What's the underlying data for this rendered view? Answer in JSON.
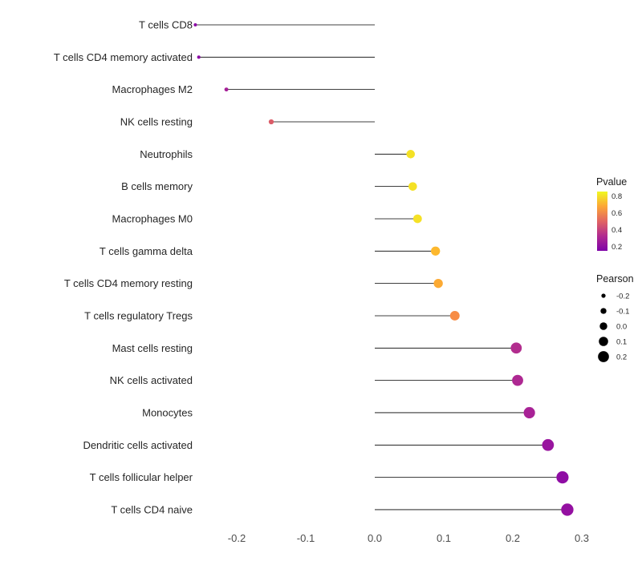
{
  "chart_data": {
    "type": "lollipop",
    "orientation": "horizontal",
    "title": "",
    "xlabel": "",
    "ylabel": "",
    "baseline": 0.0,
    "xlim": [
      -0.27,
      0.33
    ],
    "x_ticks": [
      -0.2,
      -0.1,
      0.0,
      0.1,
      0.2,
      0.3
    ],
    "x_tick_labels": [
      "-0.2",
      "-0.1",
      "0.0",
      "0.1",
      "0.2",
      "0.3"
    ],
    "grid": "off",
    "points": [
      {
        "label": "T cells CD8",
        "pearson": -0.26,
        "pvalue": 0.26,
        "color": "#8b0aa5"
      },
      {
        "label": "T cells CD4 memory activated",
        "pearson": -0.255,
        "pvalue": 0.26,
        "color": "#8b0aa5"
      },
      {
        "label": "Macrophages M2",
        "pearson": -0.215,
        "pvalue": 0.33,
        "color": "#a62098"
      },
      {
        "label": "NK cells resting",
        "pearson": -0.15,
        "pvalue": 0.48,
        "color": "#db5c68"
      },
      {
        "label": "Neutrophils",
        "pearson": 0.052,
        "pvalue": 0.8,
        "color": "#f4e125"
      },
      {
        "label": "B cells memory",
        "pearson": 0.055,
        "pvalue": 0.8,
        "color": "#f4e125"
      },
      {
        "label": "Macrophages M0",
        "pearson": 0.062,
        "pvalue": 0.78,
        "color": "#f5e126"
      },
      {
        "label": "T cells gamma delta",
        "pearson": 0.088,
        "pvalue": 0.68,
        "color": "#fdb82e"
      },
      {
        "label": "T cells CD4 memory resting",
        "pearson": 0.092,
        "pvalue": 0.65,
        "color": "#fcaa33"
      },
      {
        "label": "T cells regulatory  Tregs",
        "pearson": 0.116,
        "pvalue": 0.57,
        "color": "#f78c45"
      },
      {
        "label": "Mast cells resting",
        "pearson": 0.205,
        "pvalue": 0.34,
        "color": "#b22d8e"
      },
      {
        "label": "NK cells activated",
        "pearson": 0.207,
        "pvalue": 0.33,
        "color": "#ae2892"
      },
      {
        "label": "Monocytes",
        "pearson": 0.224,
        "pvalue": 0.31,
        "color": "#a82296"
      },
      {
        "label": "Dendritic cells activated",
        "pearson": 0.251,
        "pvalue": 0.27,
        "color": "#99159f"
      },
      {
        "label": "T cells follicular helper",
        "pearson": 0.272,
        "pvalue": 0.25,
        "color": "#8f0da4"
      },
      {
        "label": "T cells CD4 naive",
        "pearson": 0.279,
        "pvalue": 0.26,
        "color": "#9410a1"
      }
    ],
    "legend": {
      "position": "right",
      "color": {
        "title": "Pvalue",
        "domain": [
          0.15,
          0.85
        ],
        "tick_values": [
          0.8,
          0.6,
          0.4,
          0.2
        ],
        "ticks": [
          "0.8",
          "0.6",
          "0.4",
          "0.2"
        ],
        "gradient_stops": [
          "#f0f921",
          "#fca636",
          "#e16462",
          "#b12a90",
          "#7e03a8"
        ]
      },
      "size": {
        "title": "Pearson",
        "entries": [
          {
            "label": "-0.2",
            "value": -0.2
          },
          {
            "label": "-0.1",
            "value": -0.1
          },
          {
            "label": "0.0",
            "value": 0.0
          },
          {
            "label": "0.1",
            "value": 0.1
          },
          {
            "label": "0.2",
            "value": 0.2
          }
        ]
      }
    },
    "style": {
      "background": "#ffffff",
      "stem_color": "#000000",
      "text_color": "#262626",
      "tick_color": "#4d4d4d",
      "legend_title_color": "#1a1a1a",
      "legend_label_color": "#262626",
      "size_legend_dot_color": "#000000"
    }
  }
}
